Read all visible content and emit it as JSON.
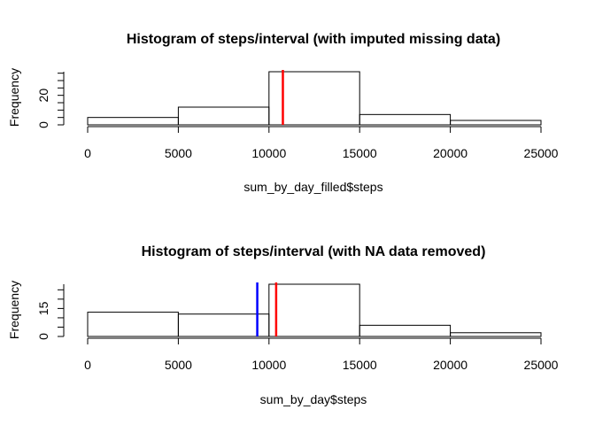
{
  "chart_data": [
    {
      "type": "bar",
      "title": "Histogram of steps/interval (with imputed missing data)",
      "xlabel": "sum_by_day_filled$steps",
      "ylabel": "Frequency",
      "bins": [
        {
          "start": 0,
          "end": 5000,
          "count": 5
        },
        {
          "start": 5000,
          "end": 10000,
          "count": 12
        },
        {
          "start": 10000,
          "end": 15000,
          "count": 36
        },
        {
          "start": 15000,
          "end": 20000,
          "count": 7
        },
        {
          "start": 20000,
          "end": 25000,
          "count": 3
        }
      ],
      "xlim": [
        0,
        25000
      ],
      "ylim": [
        0,
        36
      ],
      "x_ticks": [
        "0",
        "5000",
        "10000",
        "15000",
        "20000",
        "25000"
      ],
      "x_tick_values": [
        0,
        5000,
        10000,
        15000,
        20000,
        25000
      ],
      "y_ticks": [
        "0",
        "20"
      ],
      "y_tick_values": [
        0,
        20
      ],
      "y_minor_step": 5,
      "vlines": [
        {
          "x": 10766,
          "color": "#ff0000"
        }
      ]
    },
    {
      "type": "bar",
      "title": "Histogram of steps/interval (with NA data removed)",
      "xlabel": "sum_by_day$steps",
      "ylabel": "Frequency",
      "bins": [
        {
          "start": 0,
          "end": 5000,
          "count": 13
        },
        {
          "start": 5000,
          "end": 10000,
          "count": 12
        },
        {
          "start": 10000,
          "end": 15000,
          "count": 28
        },
        {
          "start": 15000,
          "end": 20000,
          "count": 6
        },
        {
          "start": 20000,
          "end": 25000,
          "count": 2
        }
      ],
      "xlim": [
        0,
        25000
      ],
      "ylim": [
        0,
        28
      ],
      "x_ticks": [
        "0",
        "5000",
        "10000",
        "15000",
        "20000",
        "25000"
      ],
      "x_tick_values": [
        0,
        5000,
        10000,
        15000,
        20000,
        25000
      ],
      "y_ticks": [
        "0",
        "15"
      ],
      "y_tick_values": [
        0,
        15
      ],
      "y_minor_step": 5,
      "vlines": [
        {
          "x": 9354,
          "color": "#0000ff"
        },
        {
          "x": 10395,
          "color": "#ff0000"
        }
      ]
    }
  ]
}
